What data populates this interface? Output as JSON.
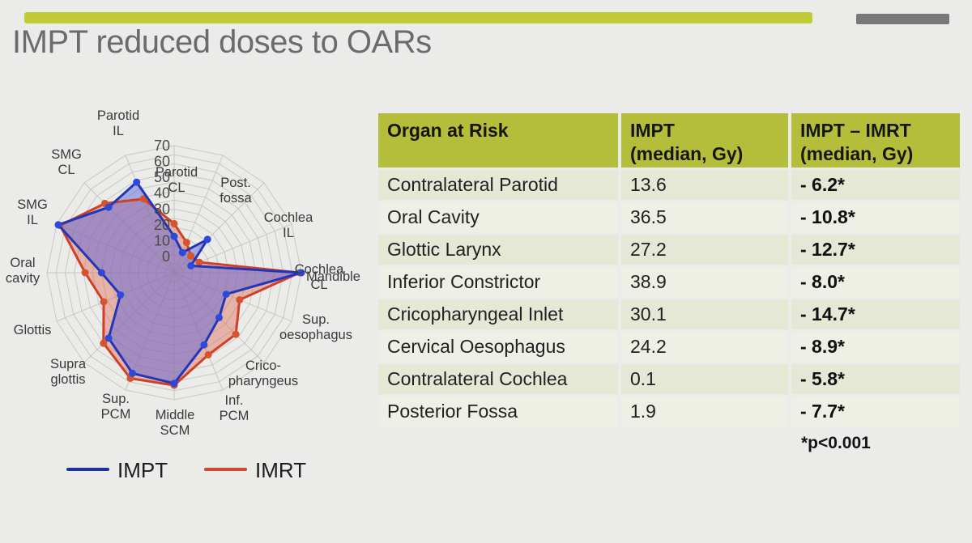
{
  "slide": {
    "title": "IMPT reduced doses to OARs"
  },
  "chart_data": {
    "type": "radar",
    "title": "",
    "axis_max": 70,
    "axis_min": 0,
    "grid_step": 5,
    "tick_labels": [
      "0",
      "10",
      "20",
      "30",
      "40",
      "50",
      "60",
      "70"
    ],
    "axes": [
      [
        "Parotid",
        "CL"
      ],
      [
        "Post.",
        "fossa"
      ],
      [
        "Cochlea",
        "IL"
      ],
      [
        "Cochlea",
        "CL"
      ],
      [
        "Mandible"
      ],
      [
        "Sup.",
        "oesophagus"
      ],
      [
        "Crico-",
        "pharyngeus"
      ],
      [
        "Inf.",
        "PCM"
      ],
      [
        "Middle",
        "SCM"
      ],
      [
        "Sup.",
        "PCM"
      ],
      [
        "Supra",
        "glottis"
      ],
      [
        "Glottis"
      ],
      [
        "Oral",
        "cavity"
      ],
      [
        "SMG",
        "IL"
      ],
      [
        "SMG",
        "CL"
      ],
      [
        "Parotid",
        "IL"
      ]
    ],
    "series": [
      {
        "name": "IMPT",
        "color": "#2336b8",
        "marker_color": "#2e49da",
        "fill": "rgba(95,104,215,0.50)",
        "values": [
          20,
          12,
          26,
          10,
          70,
          31,
          35,
          43,
          61,
          60,
          51,
          32,
          40,
          69,
          51,
          54
        ]
      },
      {
        "name": "IMRT",
        "color": "#d04028",
        "marker_color": "#d5532f",
        "fill": "rgba(222,96,70,0.40)",
        "values": [
          27,
          18,
          13,
          15,
          69,
          39,
          48,
          49,
          62,
          63,
          55,
          42,
          49,
          68,
          54,
          44
        ]
      }
    ],
    "legend": {
      "impt": "IMPT",
      "imrt": "IMRT"
    },
    "legend_position": "bottom"
  },
  "table": {
    "headers": [
      {
        "line1": "Organ at Risk",
        "line2": ""
      },
      {
        "line1": "IMPT",
        "line2": "(median, Gy)"
      },
      {
        "line1": "IMPT – IMRT",
        "line2": "(median, Gy)"
      }
    ],
    "rows": [
      {
        "organ": "Contralateral Parotid",
        "impt": "13.6",
        "diff": "- 6.2*"
      },
      {
        "organ": "Oral Cavity",
        "impt": "36.5",
        "diff": "- 10.8*"
      },
      {
        "organ": "Glottic Larynx",
        "impt": "27.2",
        "diff": "- 12.7*"
      },
      {
        "organ": "Inferior Constrictor",
        "impt": "38.9",
        "diff": "- 8.0*"
      },
      {
        "organ": "Cricopharyngeal Inlet",
        "impt": "30.1",
        "diff": "- 14.7*"
      },
      {
        "organ": "Cervical Oesophagus",
        "impt": "24.2",
        "diff": "- 8.9*"
      },
      {
        "organ": "Contralateral Cochlea",
        "impt": "0.1",
        "diff": "- 5.8*"
      },
      {
        "organ": "Posterior Fossa",
        "impt": "1.9",
        "diff": "- 7.7*"
      }
    ],
    "footnote": "*p<0.001"
  },
  "colors": {
    "background": "#ebece9",
    "accent_bar": "#c1cb34",
    "gray_block": "#77787a",
    "title_text": "#6a6b6e",
    "table_header_bg": "#b5be3a",
    "row_odd": "#e5e8d5",
    "row_even": "#eef0e6",
    "grid_line": "#c7c8c3"
  }
}
